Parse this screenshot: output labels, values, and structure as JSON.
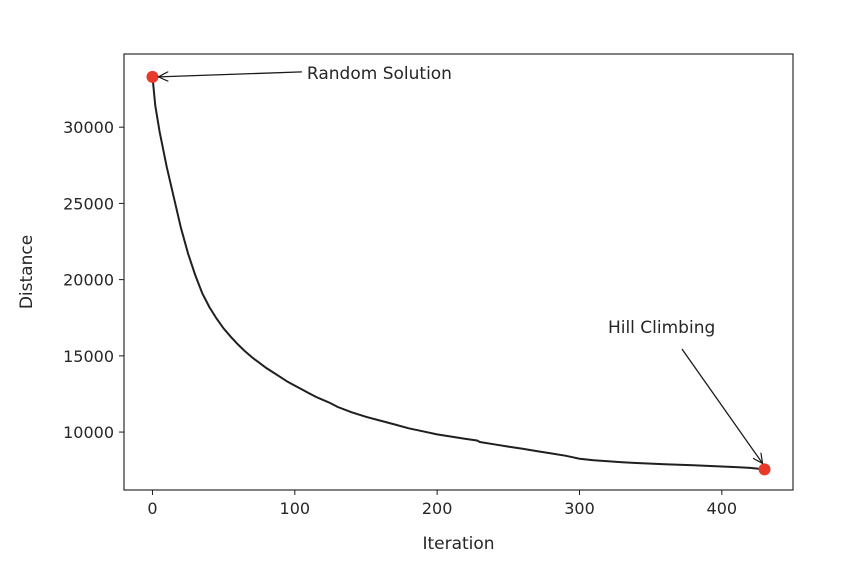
{
  "chart_data": {
    "type": "line",
    "title": "",
    "xlabel": "Iteration",
    "ylabel": "Distance",
    "xlim": [
      -20,
      450
    ],
    "ylim": [
      6200,
      34800
    ],
    "xticks": [
      0,
      100,
      200,
      300,
      400
    ],
    "yticks": [
      10000,
      15000,
      20000,
      25000,
      30000
    ],
    "grid": false,
    "colors": {
      "line": "#1f1f1f",
      "marker": "#e8392a",
      "axes": "#1a1a1a",
      "text": "#262626"
    },
    "series": [
      {
        "x": [
          0,
          2,
          5,
          10,
          15,
          20,
          25,
          30,
          35,
          40,
          45,
          50,
          55,
          60,
          65,
          70,
          75,
          80,
          85,
          90,
          95,
          100,
          105,
          110,
          115,
          120,
          125,
          130,
          140,
          150,
          160,
          170,
          180,
          190,
          200,
          210,
          220,
          228,
          230,
          240,
          250,
          260,
          270,
          280,
          290,
          295,
          300,
          310,
          320,
          330,
          340,
          350,
          360,
          370,
          380,
          390,
          400,
          410,
          420,
          430
        ],
        "y": [
          33300,
          31400,
          29700,
          27400,
          25400,
          23400,
          21700,
          20300,
          19100,
          18200,
          17450,
          16800,
          16250,
          15750,
          15300,
          14900,
          14550,
          14200,
          13900,
          13600,
          13300,
          13050,
          12800,
          12550,
          12300,
          12100,
          11900,
          11650,
          11300,
          11000,
          10750,
          10500,
          10250,
          10050,
          9850,
          9700,
          9550,
          9450,
          9350,
          9200,
          9050,
          8900,
          8750,
          8600,
          8450,
          8350,
          8250,
          8150,
          8080,
          8020,
          7970,
          7930,
          7890,
          7850,
          7820,
          7780,
          7740,
          7700,
          7650,
          7550
        ]
      }
    ],
    "markers": [
      {
        "x": 0,
        "y": 33300
      },
      {
        "x": 430,
        "y": 7550
      }
    ],
    "annotations": [
      {
        "text": "Random Solution",
        "target_x": 0,
        "target_y": 33300,
        "text_x": 105,
        "text_y": 33300
      },
      {
        "text": "Hill Climbing",
        "target_x": 430,
        "target_y": 7550,
        "text_x": 320,
        "text_y": 16500
      }
    ]
  }
}
